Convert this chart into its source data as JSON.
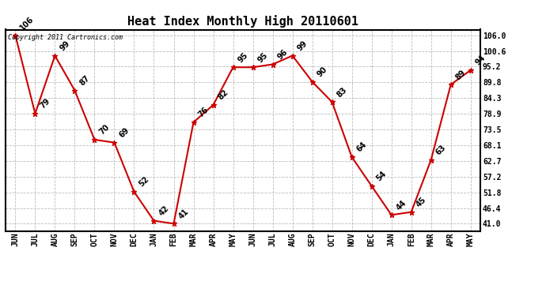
{
  "title": "Heat Index Monthly High 20110601",
  "copyright_text": "Copyright 2011 Cartronics.com",
  "months": [
    "JUN",
    "JUL",
    "AUG",
    "SEP",
    "OCT",
    "NOV",
    "DEC",
    "JAN",
    "FEB",
    "MAR",
    "APR",
    "MAY",
    "JUN",
    "JUL",
    "AUG",
    "SEP",
    "OCT",
    "NOV",
    "DEC",
    "JAN",
    "FEB",
    "MAR",
    "APR",
    "MAY"
  ],
  "values": [
    106,
    79,
    99,
    87,
    70,
    69,
    52,
    42,
    41,
    76,
    82,
    95,
    95,
    96,
    99,
    90,
    83,
    64,
    54,
    44,
    45,
    63,
    89,
    94
  ],
  "line_color": "#cc0000",
  "marker_color": "#cc0000",
  "marker": "*",
  "marker_size": 5,
  "line_width": 1.5,
  "yticks": [
    41.0,
    46.4,
    51.8,
    57.2,
    62.7,
    68.1,
    73.5,
    78.9,
    84.3,
    89.8,
    95.2,
    100.6,
    106.0
  ],
  "ylim": [
    38.5,
    108.0
  ],
  "background_color": "#ffffff",
  "plot_bg_color": "#ffffff",
  "grid_color": "#bbbbbb",
  "title_fontsize": 11,
  "label_fontsize": 7,
  "tick_fontsize": 7,
  "annot_rotation": 45
}
